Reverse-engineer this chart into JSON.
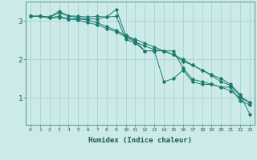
{
  "background_color": "#cceae8",
  "grid_color": "#aad4d0",
  "line_color": "#1a7a6e",
  "xlabel": "Humidex (Indice chaleur)",
  "xlim": [
    -0.5,
    23.5
  ],
  "ylim": [
    0.3,
    3.5
  ],
  "yticks": [
    1,
    2,
    3
  ],
  "xtick_labels": [
    "0",
    "1",
    "2",
    "3",
    "4",
    "5",
    "6",
    "7",
    "8",
    "9",
    "10",
    "11",
    "12",
    "13",
    "14",
    "15",
    "16",
    "17",
    "18",
    "19",
    "20",
    "21",
    "22",
    "23"
  ],
  "series": [
    {
      "x": [
        0,
        1,
        2,
        3,
        4,
        5,
        6,
        7,
        8,
        9,
        10,
        11,
        12,
        13,
        14,
        15,
        16,
        17,
        18,
        19,
        20,
        21,
        22,
        23
      ],
      "y": [
        3.12,
        3.12,
        3.1,
        3.25,
        3.13,
        3.12,
        3.1,
        3.12,
        3.1,
        3.3,
        2.62,
        2.48,
        2.22,
        2.22,
        1.42,
        1.5,
        1.72,
        1.42,
        1.35,
        1.35,
        1.28,
        1.28,
        0.92,
        0.82
      ]
    },
    {
      "x": [
        0,
        1,
        2,
        3,
        4,
        5,
        6,
        7,
        8,
        9,
        10,
        11,
        12,
        13,
        14,
        15,
        16,
        17,
        18,
        19,
        20,
        21,
        22,
        23
      ],
      "y": [
        3.12,
        3.12,
        3.1,
        3.2,
        3.13,
        3.08,
        3.05,
        3.05,
        3.1,
        3.12,
        2.52,
        2.42,
        2.22,
        2.22,
        2.22,
        2.22,
        1.78,
        1.48,
        1.42,
        1.35,
        1.28,
        1.18,
        1.0,
        0.88
      ]
    },
    {
      "x": [
        0,
        1,
        2,
        3,
        4,
        5,
        6,
        7,
        8,
        9,
        10,
        11,
        12,
        13,
        14,
        15,
        16,
        17,
        18,
        19,
        20,
        21,
        22,
        23
      ],
      "y": [
        3.12,
        3.12,
        3.08,
        3.08,
        3.05,
        3.02,
        2.95,
        2.9,
        2.8,
        2.72,
        2.58,
        2.45,
        2.35,
        2.25,
        2.22,
        2.12,
        2.0,
        1.85,
        1.72,
        1.6,
        1.5,
        1.35,
        1.08,
        0.58
      ]
    },
    {
      "x": [
        0,
        1,
        2,
        3,
        4,
        5,
        6,
        7,
        8,
        9,
        10,
        11,
        12,
        13,
        14,
        15,
        16,
        17,
        18,
        19,
        20,
        21,
        22,
        23
      ],
      "y": [
        3.12,
        3.12,
        3.08,
        3.12,
        3.05,
        3.05,
        3.02,
        2.95,
        2.85,
        2.75,
        2.62,
        2.52,
        2.42,
        2.32,
        2.22,
        2.12,
        1.95,
        1.85,
        1.72,
        1.58,
        1.42,
        1.32,
        1.05,
        0.88
      ]
    }
  ]
}
